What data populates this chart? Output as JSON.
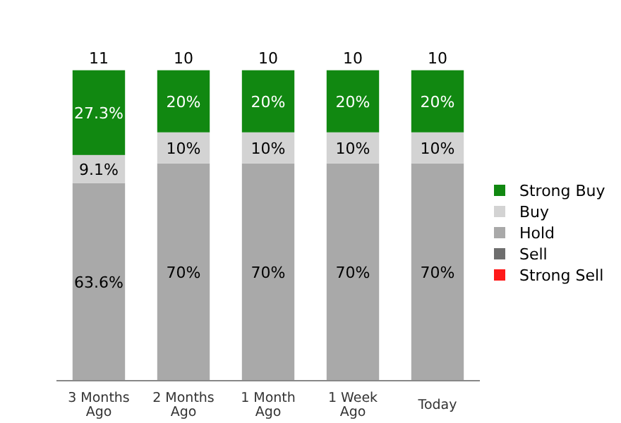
{
  "chart_data": {
    "type": "bar",
    "stacked": true,
    "categories": [
      "3 Months Ago",
      "2 Months Ago",
      "1 Month Ago",
      "1 Week Ago",
      "Today"
    ],
    "series": [
      {
        "name": "Strong Sell",
        "color": "#ff1a1a",
        "values": [
          null,
          null,
          null,
          null,
          null
        ]
      },
      {
        "name": "Sell",
        "color": "#6e6e6e",
        "values": [
          null,
          null,
          null,
          null,
          null
        ]
      },
      {
        "name": "Hold",
        "color": "#a9a9a9",
        "values": [
          63.6,
          70,
          70,
          70,
          70
        ],
        "value_labels": [
          "63.6%",
          "70%",
          "70%",
          "70%",
          "70%"
        ]
      },
      {
        "name": "Buy",
        "color": "#d3d3d3",
        "values": [
          9.1,
          10,
          10,
          10,
          10
        ],
        "value_labels": [
          "9.1%",
          "10%",
          "10%",
          "10%",
          "10%"
        ]
      },
      {
        "name": "Strong Buy",
        "color": "#118811",
        "values": [
          27.3,
          20,
          20,
          20,
          20
        ],
        "value_labels": [
          "27.3%",
          "20%",
          "20%",
          "20%",
          "20%"
        ]
      }
    ],
    "annotations": [
      {
        "text": "11",
        "x": "3 Months Ago",
        "y": 100
      },
      {
        "text": "10",
        "x": "2 Months Ago",
        "y": 100
      },
      {
        "text": "10",
        "x": "1 Month Ago",
        "y": 100
      },
      {
        "text": "10",
        "x": "1 Week Ago",
        "y": 100
      },
      {
        "text": "10",
        "x": "Today",
        "y": 100
      }
    ],
    "legend": "right"
  }
}
